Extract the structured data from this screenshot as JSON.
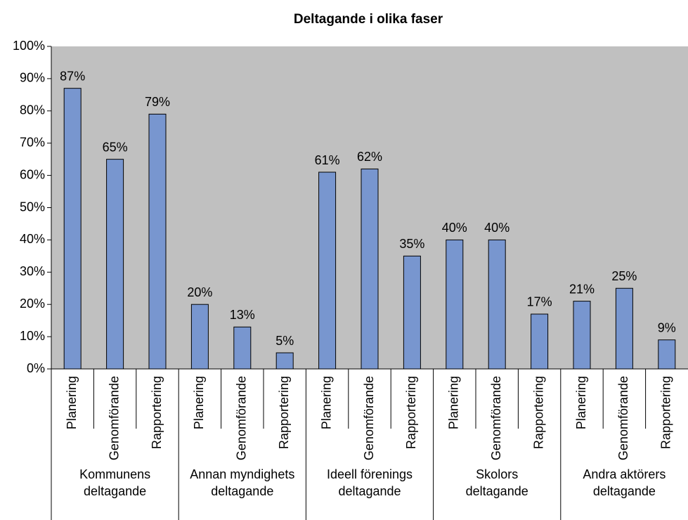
{
  "chart_data": {
    "type": "bar",
    "title": "Deltagande i olika faser",
    "categories": [
      "Planering",
      "Genomförande",
      "Rapportering",
      "Planering",
      "Genomförande",
      "Rapportering",
      "Planering",
      "Genomförande",
      "Rapportering",
      "Planering",
      "Genomförande",
      "Rapportering",
      "Planering",
      "Genomförande",
      "Rapportering"
    ],
    "groups": [
      [
        "Kommunens",
        "deltagande"
      ],
      [
        "Annan myndighets",
        "deltagande"
      ],
      [
        "Ideell förenings",
        "deltagande"
      ],
      [
        "Skolors",
        "deltagande"
      ],
      [
        "Andra aktörers",
        "deltagande"
      ]
    ],
    "values": [
      87,
      65,
      79,
      20,
      13,
      5,
      61,
      62,
      35,
      40,
      40,
      17,
      21,
      25,
      9
    ],
    "value_labels": [
      "87%",
      "65%",
      "79%",
      "20%",
      "13%",
      "5%",
      "61%",
      "62%",
      "35%",
      "40%",
      "40%",
      "17%",
      "21%",
      "25%",
      "9%"
    ],
    "color": "#7896cf",
    "ylim": [
      0,
      100
    ],
    "yticks": [
      {
        "value": 0,
        "label": "0%"
      },
      {
        "value": 10,
        "label": "10%"
      },
      {
        "value": 20,
        "label": "20%"
      },
      {
        "value": 30,
        "label": "30%"
      },
      {
        "value": 40,
        "label": "40%"
      },
      {
        "value": 50,
        "label": "50%"
      },
      {
        "value": 60,
        "label": "60%"
      },
      {
        "value": 70,
        "label": "70%"
      },
      {
        "value": 80,
        "label": "80%"
      },
      {
        "value": 90,
        "label": "90%"
      },
      {
        "value": 100,
        "label": "100%"
      }
    ]
  }
}
